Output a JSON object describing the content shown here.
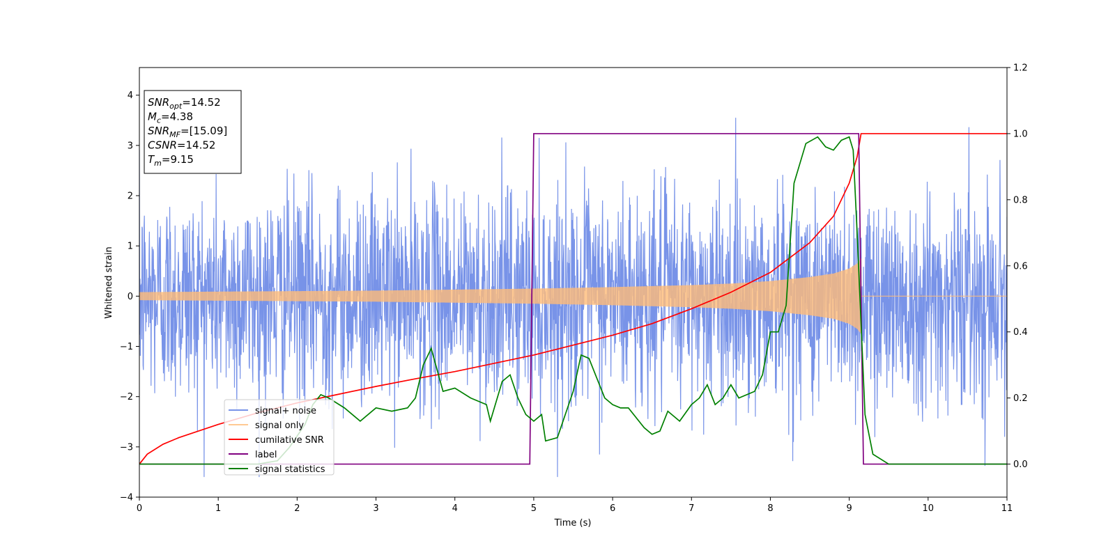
{
  "chart_data": {
    "type": "line",
    "title": "",
    "xlabel": "Time (s)",
    "ylabel": "Whitened strain",
    "xlim": [
      0,
      11
    ],
    "ylim": [
      -4,
      4.55
    ],
    "y2lim": [
      -0.1,
      1.2
    ],
    "x_ticks": [
      "0",
      "1",
      "2",
      "3",
      "4",
      "5",
      "6",
      "7",
      "8",
      "9",
      "10",
      "11"
    ],
    "y_ticks": [
      "−4",
      "−3",
      "−2",
      "−1",
      "0",
      "1",
      "2",
      "3",
      "4"
    ],
    "y2_ticks": [
      "0.0",
      "0.2",
      "0.4",
      "0.6",
      "0.8",
      "1.0",
      "1.2"
    ],
    "grid": false,
    "legend_position": "lower-left",
    "annotation": {
      "lines": [
        {
          "var": "SNR",
          "sub": "opt",
          "text": "=14.52"
        },
        {
          "var": "M",
          "sub": "c",
          "text": "=4.38"
        },
        {
          "var": "SNR",
          "sub": "MF",
          "text": "=[15.09]"
        },
        {
          "var": "CSNR",
          "sub": "",
          "text": "=14.52"
        },
        {
          "var": "T",
          "sub": "m",
          "text": "=9.15"
        }
      ]
    },
    "series": [
      {
        "name": "signal+ noise",
        "axis": "left",
        "color": "#7893e8",
        "kind": "noise",
        "x_range": [
          0,
          11
        ],
        "std": 1.0,
        "visible_range": [
          -3.6,
          3.55
        ]
      },
      {
        "name": "signal only",
        "axis": "left",
        "color": "#ffbb78",
        "kind": "chirp-envelope",
        "envelope": [
          [
            0,
            0.08
          ],
          [
            1,
            0.09
          ],
          [
            2,
            0.1
          ],
          [
            3,
            0.11
          ],
          [
            4,
            0.13
          ],
          [
            5,
            0.15
          ],
          [
            6,
            0.18
          ],
          [
            7,
            0.22
          ],
          [
            7.5,
            0.25
          ],
          [
            8,
            0.3
          ],
          [
            8.5,
            0.38
          ],
          [
            8.8,
            0.45
          ],
          [
            9.0,
            0.55
          ],
          [
            9.1,
            0.65
          ],
          [
            9.15,
            0.75
          ]
        ],
        "end_x": 9.15
      },
      {
        "name": "cumilative SNR",
        "axis": "right",
        "color": "#ff0000",
        "points": [
          [
            0,
            0.0
          ],
          [
            0.1,
            0.03
          ],
          [
            0.3,
            0.06
          ],
          [
            0.5,
            0.08
          ],
          [
            1,
            0.12
          ],
          [
            1.5,
            0.155
          ],
          [
            2,
            0.185
          ],
          [
            2.5,
            0.21
          ],
          [
            3,
            0.235
          ],
          [
            3.5,
            0.258
          ],
          [
            4,
            0.28
          ],
          [
            4.5,
            0.305
          ],
          [
            5,
            0.33
          ],
          [
            5.5,
            0.36
          ],
          [
            6,
            0.39
          ],
          [
            6.5,
            0.425
          ],
          [
            7,
            0.47
          ],
          [
            7.5,
            0.52
          ],
          [
            8,
            0.58
          ],
          [
            8.5,
            0.67
          ],
          [
            8.8,
            0.75
          ],
          [
            9.0,
            0.85
          ],
          [
            9.1,
            0.93
          ],
          [
            9.15,
            1.0
          ],
          [
            11,
            1.0
          ]
        ]
      },
      {
        "name": "label",
        "axis": "right",
        "color": "#800080",
        "points": [
          [
            0,
            0
          ],
          [
            4.95,
            0
          ],
          [
            5.0,
            1
          ],
          [
            9.12,
            1
          ],
          [
            9.18,
            0
          ],
          [
            11,
            0
          ]
        ]
      },
      {
        "name": "signal statistics",
        "axis": "right",
        "color": "#008000",
        "points": [
          [
            0,
            0.0
          ],
          [
            1.5,
            0.0
          ],
          [
            1.75,
            0.01
          ],
          [
            1.9,
            0.05
          ],
          [
            2.1,
            0.12
          ],
          [
            2.2,
            0.18
          ],
          [
            2.3,
            0.21
          ],
          [
            2.4,
            0.2
          ],
          [
            2.6,
            0.17
          ],
          [
            2.8,
            0.13
          ],
          [
            3.0,
            0.17
          ],
          [
            3.2,
            0.16
          ],
          [
            3.4,
            0.17
          ],
          [
            3.5,
            0.2
          ],
          [
            3.6,
            0.3
          ],
          [
            3.7,
            0.35
          ],
          [
            3.85,
            0.22
          ],
          [
            4.0,
            0.23
          ],
          [
            4.2,
            0.2
          ],
          [
            4.4,
            0.18
          ],
          [
            4.45,
            0.13
          ],
          [
            4.6,
            0.25
          ],
          [
            4.7,
            0.27
          ],
          [
            4.8,
            0.2
          ],
          [
            4.9,
            0.15
          ],
          [
            5.0,
            0.13
          ],
          [
            5.1,
            0.15
          ],
          [
            5.15,
            0.07
          ],
          [
            5.3,
            0.08
          ],
          [
            5.5,
            0.22
          ],
          [
            5.6,
            0.33
          ],
          [
            5.7,
            0.32
          ],
          [
            5.8,
            0.26
          ],
          [
            5.9,
            0.2
          ],
          [
            6.0,
            0.18
          ],
          [
            6.1,
            0.17
          ],
          [
            6.2,
            0.17
          ],
          [
            6.4,
            0.11
          ],
          [
            6.5,
            0.09
          ],
          [
            6.6,
            0.1
          ],
          [
            6.7,
            0.16
          ],
          [
            6.85,
            0.13
          ],
          [
            7.0,
            0.18
          ],
          [
            7.1,
            0.2
          ],
          [
            7.2,
            0.24
          ],
          [
            7.3,
            0.18
          ],
          [
            7.4,
            0.2
          ],
          [
            7.5,
            0.24
          ],
          [
            7.6,
            0.2
          ],
          [
            7.8,
            0.22
          ],
          [
            7.9,
            0.27
          ],
          [
            8.0,
            0.4
          ],
          [
            8.1,
            0.4
          ],
          [
            8.2,
            0.48
          ],
          [
            8.3,
            0.85
          ],
          [
            8.45,
            0.97
          ],
          [
            8.6,
            0.99
          ],
          [
            8.7,
            0.96
          ],
          [
            8.8,
            0.95
          ],
          [
            8.9,
            0.98
          ],
          [
            9.0,
            0.99
          ],
          [
            9.05,
            0.95
          ],
          [
            9.1,
            0.7
          ],
          [
            9.2,
            0.15
          ],
          [
            9.3,
            0.03
          ],
          [
            9.5,
            0.0
          ],
          [
            11,
            0.0
          ]
        ]
      }
    ]
  }
}
